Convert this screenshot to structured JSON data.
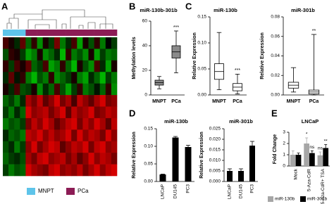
{
  "chart_data": [
    {
      "type": "heatmap",
      "label": "A",
      "groups": [
        {
          "name": "MNPT",
          "color": "#5ec4ea"
        },
        {
          "name": "PCa",
          "color": "#8c1c55"
        }
      ],
      "column_groups": [
        0,
        0,
        0,
        0,
        1,
        1,
        1,
        1,
        1,
        1,
        1,
        1,
        1,
        1,
        1,
        1,
        1,
        1,
        1,
        1
      ],
      "matrix": [
        [
          0.3,
          0.1,
          -0.2,
          0.4,
          -0.5,
          0.2,
          -0.7,
          0.1,
          -0.3,
          0.5,
          -0.6,
          -0.2,
          0.3,
          -0.8,
          0.1,
          -0.4,
          0.2,
          -0.6,
          0.0,
          -0.3
        ],
        [
          -0.4,
          0.2,
          0.1,
          -0.3,
          -0.8,
          -0.6,
          0.1,
          -0.7,
          -0.5,
          -0.2,
          -0.9,
          0.2,
          -0.6,
          -0.4,
          -0.7,
          0.1,
          -0.8,
          -0.3,
          -0.6,
          -0.5
        ],
        [
          0.2,
          -0.3,
          0.3,
          0.1,
          0.4,
          -0.5,
          -0.3,
          0.3,
          -0.8,
          -0.6,
          0.2,
          -0.5,
          -0.9,
          0.1,
          -0.4,
          -0.7,
          0.3,
          -0.2,
          -0.8,
          0.1
        ],
        [
          -0.2,
          0.4,
          -0.1,
          0.2,
          -0.6,
          -0.9,
          -0.4,
          -0.6,
          0.2,
          -0.7,
          -0.5,
          -0.3,
          0.1,
          -0.6,
          -0.8,
          -0.2,
          -0.5,
          -0.9,
          -0.3,
          -0.6
        ],
        [
          0.1,
          -0.2,
          0.3,
          -0.4,
          -0.3,
          0.1,
          -0.7,
          -0.2,
          -0.5,
          0.3,
          -0.4,
          -0.8,
          -0.3,
          0.2,
          -0.6,
          -0.4,
          -0.1,
          -0.5,
          0.2,
          -0.7
        ],
        [
          -0.5,
          -0.3,
          -0.6,
          -0.2,
          0.7,
          0.5,
          0.8,
          0.4,
          0.6,
          0.9,
          0.5,
          0.7,
          0.3,
          0.8,
          0.6,
          0.4,
          0.7,
          0.9,
          0.5,
          0.6
        ],
        [
          -0.3,
          -0.6,
          -0.2,
          -0.5,
          0.9,
          0.6,
          0.7,
          0.8,
          0.5,
          0.7,
          0.9,
          0.4,
          0.8,
          0.6,
          0.7,
          0.9,
          0.5,
          0.6,
          0.8,
          0.7
        ],
        [
          -0.6,
          -0.4,
          -0.5,
          -0.3,
          0.5,
          0.8,
          0.6,
          0.9,
          0.7,
          0.4,
          0.6,
          0.8,
          0.9,
          0.5,
          0.8,
          0.6,
          0.9,
          0.7,
          0.4,
          0.8
        ],
        [
          -0.2,
          -0.5,
          -0.4,
          -0.6,
          0.8,
          0.7,
          0.9,
          0.6,
          0.8,
          0.6,
          0.7,
          0.9,
          0.5,
          0.9,
          0.6,
          0.8,
          0.7,
          0.5,
          0.9,
          0.6
        ],
        [
          -0.4,
          -0.2,
          -0.6,
          -0.3,
          0.6,
          0.9,
          0.5,
          0.7,
          0.9,
          0.8,
          0.4,
          0.6,
          0.8,
          0.7,
          0.9,
          0.5,
          0.8,
          0.9,
          0.6,
          0.7
        ],
        [
          -0.5,
          -0.3,
          -0.2,
          -0.4,
          0.7,
          0.5,
          0.8,
          0.9,
          0.6,
          0.7,
          0.8,
          0.5,
          0.7,
          0.4,
          0.6,
          0.9,
          0.6,
          0.8,
          0.7,
          0.5
        ],
        [
          -0.3,
          -0.6,
          -0.4,
          -0.5,
          0.9,
          0.7,
          0.6,
          0.5,
          0.8,
          0.9,
          0.6,
          0.7,
          0.6,
          0.8,
          0.5,
          0.7,
          0.9,
          0.6,
          0.8,
          0.9
        ]
      ]
    },
    {
      "type": "box",
      "label": "B",
      "title": "miR-130b-301b",
      "ylabel": "Methylation levels",
      "color": "#8a8a8a",
      "categories": [
        "MNPT",
        "PCa"
      ],
      "boxes": [
        [
          5,
          8,
          10,
          12,
          15
        ],
        [
          18,
          30,
          35,
          40,
          52
        ]
      ],
      "annotations": [
        null,
        "***"
      ],
      "ylim": [
        0,
        60
      ],
      "yticks": [
        0,
        20,
        40,
        60
      ]
    },
    {
      "type": "box",
      "label": "C",
      "title": "miR-130b",
      "ylabel": "Relative Expression",
      "color": "#ffffff",
      "categories": [
        "MNPT",
        "PCa"
      ],
      "boxes": [
        [
          0.01,
          0.03,
          0.045,
          0.06,
          0.12
        ],
        [
          0.002,
          0.008,
          0.015,
          0.022,
          0.04
        ]
      ],
      "annotations": [
        null,
        "***"
      ],
      "ylim": [
        0,
        0.15
      ],
      "yticks": [
        {
          "value": 0,
          "label": "0.00"
        },
        0.05,
        {
          "value": 0.1,
          "label": "0.10"
        },
        0.15
      ]
    },
    {
      "type": "box",
      "title": "miR-301b",
      "ylabel": "Relative Expression",
      "color": "#ffffff",
      "categories": [
        "MNPT",
        "PCa"
      ],
      "boxes": [
        [
          0.003,
          0.007,
          0.01,
          0.013,
          0.028
        ],
        [
          0,
          0.001,
          0.003,
          0.005,
          0.062
        ]
      ],
      "annotations": [
        null,
        "**"
      ],
      "ylim": [
        0,
        0.08
      ],
      "yticks": [
        {
          "value": 0,
          "label": "0.00"
        },
        0.02,
        0.04,
        0.06,
        0.08
      ]
    },
    {
      "type": "bar",
      "label": "D",
      "title": "miR-130b",
      "ylabel": "Relative Expression",
      "color": "#000000",
      "categories": [
        "LNCaP",
        "DU145",
        "PC3"
      ],
      "values": [
        0.02,
        0.125,
        0.098
      ],
      "errors": [
        0.001,
        0.003,
        0.005
      ],
      "ylim": [
        0,
        0.15
      ],
      "yticks": [
        {
          "value": 0,
          "label": "0.00"
        },
        0.05,
        {
          "value": 0.1,
          "label": "0.10"
        },
        0.15
      ]
    },
    {
      "type": "bar",
      "title": "miR-301b",
      "ylabel": "Relative Expression",
      "color": "#000000",
      "categories": [
        "LNCaP",
        "DU145",
        "PC3"
      ],
      "values": [
        0.005,
        0.005,
        0.017
      ],
      "errors": [
        0.001,
        0.001,
        0.002
      ],
      "ylim": [
        0,
        0.025
      ],
      "yticks": [
        {
          "value": 0,
          "label": "0.000"
        },
        0.005,
        {
          "value": 0.01,
          "label": "0.010"
        },
        0.015,
        {
          "value": 0.02,
          "label": "0.020"
        },
        0.025
      ]
    },
    {
      "type": "grouped-bar",
      "label": "E",
      "title": "LNCaP",
      "ylabel": "Fold Change",
      "categories": [
        "Mock",
        "5-Aza-CdR",
        "5-Aza-CdR+ TSA"
      ],
      "series": [
        {
          "name": "miR-130b",
          "color": "#a6a6a6",
          "values": [
            1.0,
            2.0,
            0.95
          ],
          "errors": [
            0.35,
            0.5,
            0.3
          ],
          "annotations": [
            null,
            "*",
            "ns"
          ]
        },
        {
          "name": "miR-301b",
          "color": "#000000",
          "values": [
            1.0,
            1.15,
            1.6
          ],
          "errors": [
            0.15,
            0.2,
            0.3
          ],
          "annotations": [
            null,
            "ns",
            "**"
          ]
        }
      ],
      "ylim": [
        0,
        3
      ],
      "yticks": [
        0,
        1,
        2,
        3
      ]
    }
  ]
}
